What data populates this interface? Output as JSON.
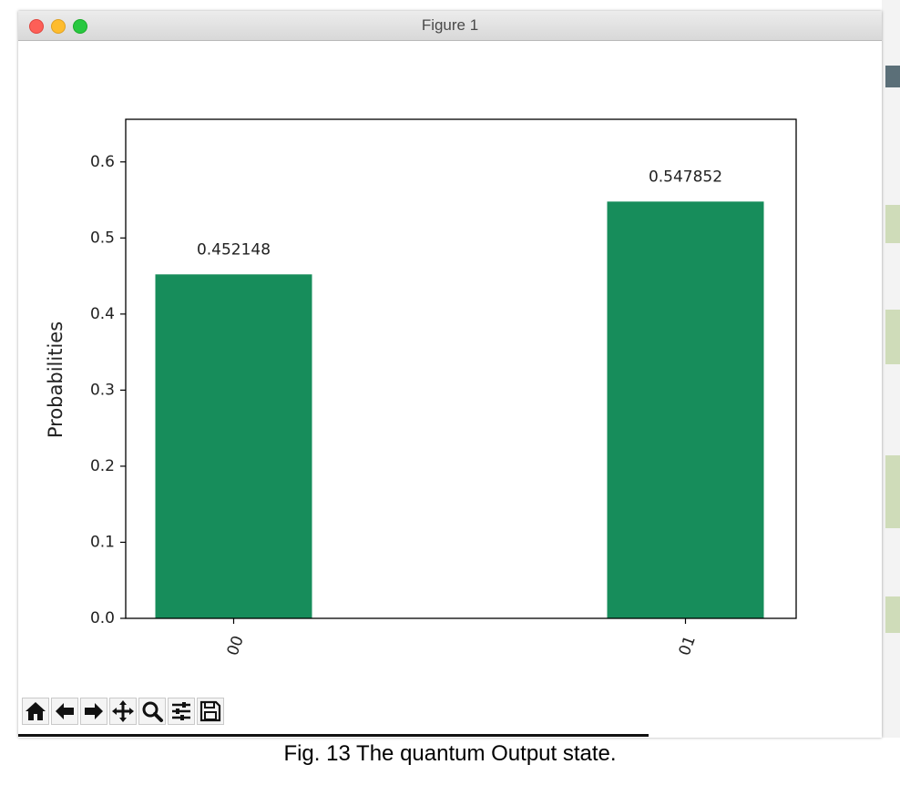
{
  "window": {
    "title": "Figure 1"
  },
  "toolbar": {
    "buttons": [
      {
        "name": "home-icon",
        "tooltip": "Reset original view"
      },
      {
        "name": "arrow-left-icon",
        "tooltip": "Back"
      },
      {
        "name": "arrow-right-icon",
        "tooltip": "Forward"
      },
      {
        "name": "move-icon",
        "tooltip": "Pan"
      },
      {
        "name": "zoom-icon",
        "tooltip": "Zoom"
      },
      {
        "name": "sliders-icon",
        "tooltip": "Configure subplots"
      },
      {
        "name": "save-icon",
        "tooltip": "Save"
      }
    ]
  },
  "caption": "Fig. 13 The quantum Output state.",
  "colors": {
    "bar": "#178d5b",
    "axes": "#000000",
    "text": "#222222"
  },
  "chart_data": {
    "type": "bar",
    "categories": [
      "00",
      "01"
    ],
    "values": [
      0.452148,
      0.547852
    ],
    "value_labels": [
      "0.452148",
      "0.547852"
    ],
    "title": "",
    "xlabel": "",
    "ylabel": "Probabilities",
    "ylim": [
      0,
      0.656
    ],
    "yticks": [
      0.0,
      0.1,
      0.2,
      0.3,
      0.4,
      0.5,
      0.6
    ],
    "ytick_labels": [
      "0.0",
      "0.1",
      "0.2",
      "0.3",
      "0.4",
      "0.5",
      "0.6"
    ],
    "xtick_rotation": 70,
    "grid": false,
    "legend": false
  }
}
